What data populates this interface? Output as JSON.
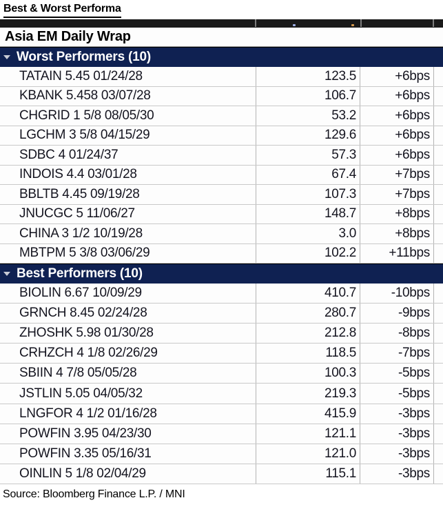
{
  "page": {
    "title": "Best & Worst Performa",
    "subtitle": "Asia EM Daily Wrap",
    "source": "Source: Bloomberg Finance L.P. / MNI"
  },
  "colors": {
    "section_header_bg": "#0f2152",
    "section_header_text": "#ffffff",
    "top_bar_bg": "#1a1a1a",
    "row_text": "#14141f",
    "grid_line": "#c9c9c9",
    "column_divider": "#b3b3b3",
    "top_bar_dot_left": "#9fb0e8",
    "top_bar_dot_right": "#d79a4e"
  },
  "icons": {
    "collapse_triangle": "down-triangle"
  },
  "sections": [
    {
      "label": "Worst Performers (10)",
      "rows": [
        {
          "name": "TATAIN 5.45 01/24/28",
          "price": "123.5",
          "change": "+6bps"
        },
        {
          "name": "KBANK 5.458 03/07/28",
          "price": "106.7",
          "change": "+6bps"
        },
        {
          "name": "CHGRID 1 5/8 08/05/30",
          "price": "53.2",
          "change": "+6bps"
        },
        {
          "name": "LGCHM 3 5/8 04/15/29",
          "price": "129.6",
          "change": "+6bps"
        },
        {
          "name": "SDBC 4 01/24/37",
          "price": "57.3",
          "change": "+6bps"
        },
        {
          "name": "INDOIS 4.4 03/01/28",
          "price": "67.4",
          "change": "+7bps"
        },
        {
          "name": "BBLTB 4.45 09/19/28",
          "price": "107.3",
          "change": "+7bps"
        },
        {
          "name": "JNUCGC 5 11/06/27",
          "price": "148.7",
          "change": "+8bps"
        },
        {
          "name": "CHINA 3 1/2 10/19/28",
          "price": "3.0",
          "change": "+8bps"
        },
        {
          "name": "MBTPM 5 3/8 03/06/29",
          "price": "102.2",
          "change": "+11bps"
        }
      ]
    },
    {
      "label": "Best Performers (10)",
      "rows": [
        {
          "name": "BIOLIN 6.67 10/09/29",
          "price": "410.7",
          "change": "-10bps"
        },
        {
          "name": "GRNCH 8.45 02/24/28",
          "price": "280.7",
          "change": "-9bps"
        },
        {
          "name": "ZHOSHK 5.98 01/30/28",
          "price": "212.8",
          "change": "-8bps"
        },
        {
          "name": "CRHZCH 4 1/8 02/26/29",
          "price": "118.5",
          "change": "-7bps"
        },
        {
          "name": "SBIIN 4 7/8 05/05/28",
          "price": "100.3",
          "change": "-5bps"
        },
        {
          "name": "JSTLIN 5.05 04/05/32",
          "price": "219.3",
          "change": "-5bps"
        },
        {
          "name": "LNGFOR 4 1/2 01/16/28",
          "price": "415.9",
          "change": "-3bps"
        },
        {
          "name": "POWFIN 3.95 04/23/30",
          "price": "121.1",
          "change": "-3bps"
        },
        {
          "name": "POWFIN 3.35 05/16/31",
          "price": "121.0",
          "change": "-3bps"
        },
        {
          "name": "OINLIN 5 1/8 02/04/29",
          "price": "115.1",
          "change": "-3bps"
        }
      ]
    }
  ]
}
